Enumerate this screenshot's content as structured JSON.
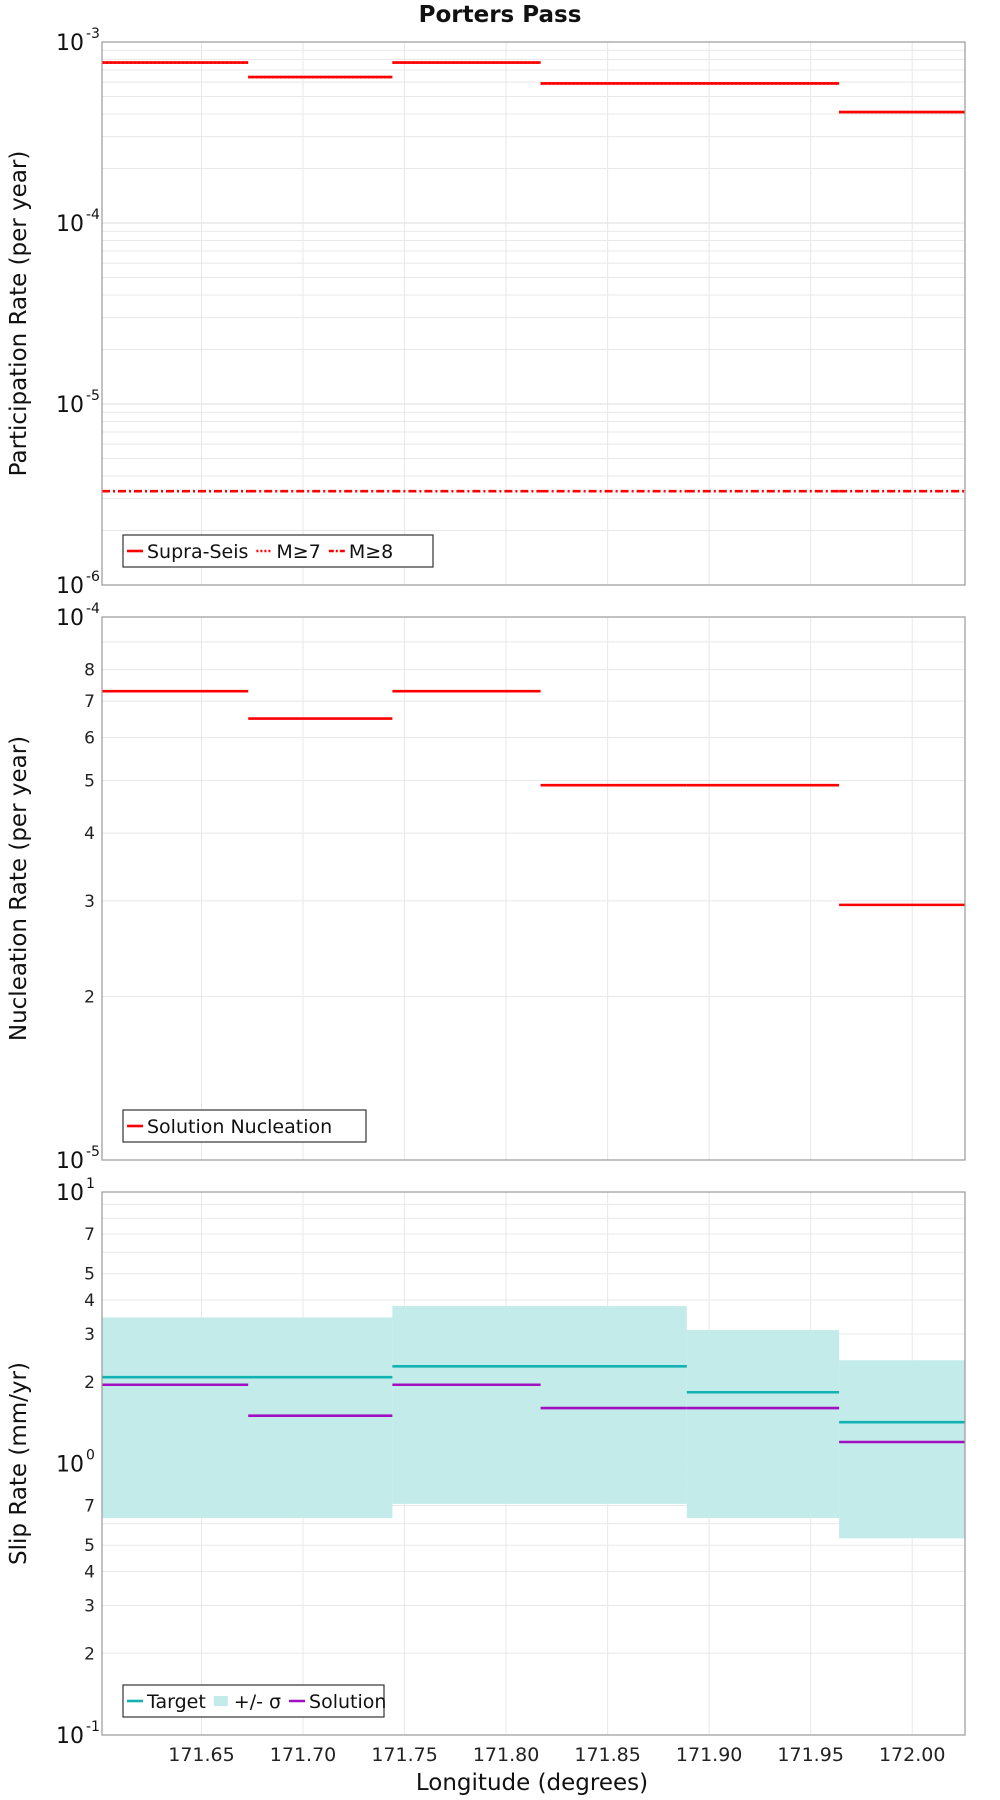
{
  "title": "Porters Pass",
  "colors": {
    "red": "#ff0000",
    "target": "#12b2b2",
    "sigma_fill": "#c2ebea",
    "solution": "#a010c0",
    "grid": "#e8e8e8",
    "frame": "#999999"
  },
  "xaxis": {
    "label": "Longitude (degrees)",
    "lim": [
      171.601,
      172.026
    ],
    "ticks": [
      171.65,
      171.7,
      171.75,
      171.8,
      171.85,
      171.9,
      171.95,
      172.0
    ],
    "tick_labels": [
      "171.65",
      "171.70",
      "171.75",
      "171.80",
      "171.85",
      "171.90",
      "171.95",
      "172.00"
    ]
  },
  "chart_data": [
    {
      "type": "line",
      "id": "participation",
      "ylabel": "Participation Rate (per year)",
      "yscale": "log",
      "ylim": [
        1e-06,
        0.001
      ],
      "major_ticks": [
        {
          "value": 0.001,
          "base": "10",
          "exp": "-3"
        },
        {
          "value": 0.0001,
          "base": "10",
          "exp": "-4"
        },
        {
          "value": 1e-05,
          "base": "10",
          "exp": "-5"
        },
        {
          "value": 1e-06,
          "base": "10",
          "exp": "-6"
        }
      ],
      "minor_ticks": [],
      "legend": {
        "position": "bottom-left",
        "entries": [
          "Supra-Seis",
          "M≥7",
          "M≥8"
        ]
      },
      "series": [
        {
          "name": "Supra-Seis",
          "style": "solid",
          "segments": [
            [
              171.601,
              171.673,
              0.00077
            ],
            [
              171.673,
              171.744,
              0.00064
            ],
            [
              171.744,
              171.817,
              0.00077
            ],
            [
              171.817,
              171.889,
              0.00059
            ],
            [
              171.889,
              171.964,
              0.00059
            ],
            [
              171.964,
              172.026,
              0.00041
            ]
          ]
        },
        {
          "name": "M≥7",
          "style": "dotted",
          "segments": [
            [
              171.601,
              171.673,
              0.00077
            ],
            [
              171.673,
              171.744,
              0.00064
            ],
            [
              171.744,
              171.817,
              0.00077
            ],
            [
              171.817,
              171.889,
              0.00059
            ],
            [
              171.889,
              171.964,
              0.00059
            ],
            [
              171.964,
              172.026,
              0.00041
            ]
          ]
        },
        {
          "name": "M≥8",
          "style": "dashdot",
          "segments": [
            [
              171.601,
              171.673,
              3.3e-06
            ],
            [
              171.673,
              171.744,
              3.3e-06
            ],
            [
              171.744,
              171.817,
              3.3e-06
            ],
            [
              171.817,
              171.889,
              3.3e-06
            ],
            [
              171.889,
              171.964,
              3.3e-06
            ],
            [
              171.964,
              172.026,
              3.3e-06
            ]
          ]
        }
      ]
    },
    {
      "type": "line",
      "id": "nucleation",
      "ylabel": "Nucleation Rate (per year)",
      "yscale": "log",
      "ylim": [
        1e-05,
        0.0001
      ],
      "major_ticks": [
        {
          "value": 0.0001,
          "base": "10",
          "exp": "-4"
        },
        {
          "value": 1e-05,
          "base": "10",
          "exp": "-5"
        }
      ],
      "minor_ticks": [
        {
          "value": 2e-05,
          "label": "2"
        },
        {
          "value": 3e-05,
          "label": "3"
        },
        {
          "value": 4e-05,
          "label": "4"
        },
        {
          "value": 5e-05,
          "label": "5"
        },
        {
          "value": 6e-05,
          "label": "6"
        },
        {
          "value": 7e-05,
          "label": "7"
        },
        {
          "value": 8e-05,
          "label": "8"
        }
      ],
      "legend": {
        "position": "bottom-left",
        "entries": [
          "Solution Nucleation"
        ]
      },
      "series": [
        {
          "name": "Solution Nucleation",
          "style": "solid",
          "segments": [
            [
              171.601,
              171.673,
              7.3e-05
            ],
            [
              171.673,
              171.744,
              6.5e-05
            ],
            [
              171.744,
              171.817,
              7.3e-05
            ],
            [
              171.817,
              171.889,
              4.9e-05
            ],
            [
              171.889,
              171.964,
              4.9e-05
            ],
            [
              171.964,
              172.026,
              2.95e-05
            ]
          ]
        }
      ]
    },
    {
      "type": "line",
      "id": "slip",
      "ylabel": "Slip Rate (mm/yr)",
      "yscale": "log",
      "ylim": [
        0.1,
        10
      ],
      "major_ticks": [
        {
          "value": 10,
          "base": "10",
          "exp": "1"
        },
        {
          "value": 1,
          "base": "10",
          "exp": "0"
        },
        {
          "value": 0.1,
          "base": "10",
          "exp": "-1"
        }
      ],
      "minor_ticks": [
        {
          "value": 2,
          "label": "2"
        },
        {
          "value": 3,
          "label": "3"
        },
        {
          "value": 4,
          "label": "4"
        },
        {
          "value": 5,
          "label": "5"
        },
        {
          "value": 7,
          "label": "7"
        },
        {
          "value": 0.2,
          "label": "2"
        },
        {
          "value": 0.3,
          "label": "3"
        },
        {
          "value": 0.4,
          "label": "4"
        },
        {
          "value": 0.5,
          "label": "5"
        },
        {
          "value": 0.7,
          "label": "7"
        }
      ],
      "legend": {
        "position": "bottom-left",
        "entries": [
          "Target",
          "+/- σ",
          "Solution"
        ]
      },
      "bands": [
        {
          "name": "+/- σ",
          "segments": [
            [
              171.601,
              171.744,
              0.63,
              3.45
            ],
            [
              171.744,
              171.889,
              0.71,
              3.8
            ],
            [
              171.889,
              171.964,
              0.63,
              3.1
            ],
            [
              171.964,
              172.026,
              0.53,
              2.4
            ]
          ]
        }
      ],
      "series": [
        {
          "name": "Target",
          "style": "solid",
          "color_key": "target",
          "segments": [
            [
              171.601,
              171.744,
              2.08
            ],
            [
              171.744,
              171.889,
              2.28
            ],
            [
              171.889,
              171.964,
              1.83
            ],
            [
              171.964,
              172.026,
              1.42
            ]
          ]
        },
        {
          "name": "Solution",
          "style": "solid",
          "color_key": "solution",
          "segments": [
            [
              171.601,
              171.673,
              1.95
            ],
            [
              171.673,
              171.744,
              1.5
            ],
            [
              171.744,
              171.817,
              1.95
            ],
            [
              171.817,
              171.889,
              1.6
            ],
            [
              171.889,
              171.964,
              1.6
            ],
            [
              171.964,
              172.026,
              1.2
            ]
          ]
        }
      ]
    }
  ]
}
